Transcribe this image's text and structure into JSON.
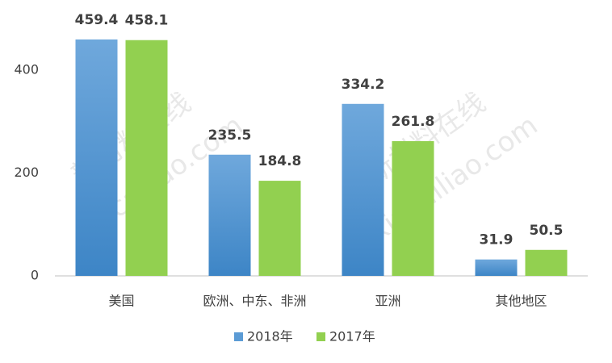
{
  "chart_data": {
    "type": "bar",
    "categories": [
      "美国",
      "欧洲、中东、非洲",
      "亚洲",
      "其他地区"
    ],
    "series": [
      {
        "name": "2018年",
        "color": "#5b9bd5",
        "values": [
          459.4,
          235.5,
          334.2,
          31.9
        ]
      },
      {
        "name": "2017年",
        "color": "#92d050",
        "values": [
          458.1,
          184.8,
          261.8,
          50.5
        ]
      }
    ],
    "ylim": [
      0,
      500
    ],
    "yticks": [
      0,
      200,
      400
    ],
    "grid": false,
    "legend": "bottom",
    "watermark": [
      "新材料在线",
      "xincailiao.com"
    ]
  }
}
